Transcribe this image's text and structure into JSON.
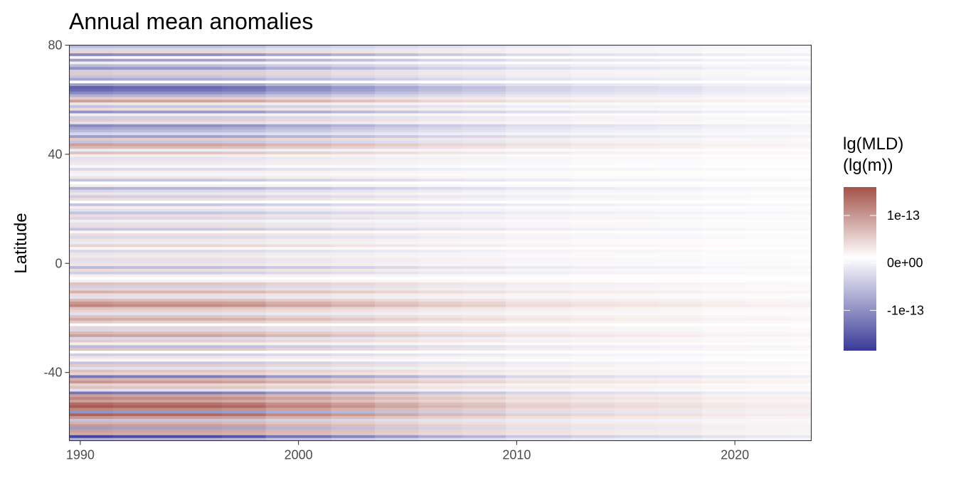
{
  "chart_data": {
    "type": "heatmap",
    "title": "Annual mean anomalies",
    "xlabel": "",
    "ylabel": "Latitude",
    "x_ticks": [
      "1990",
      "2000",
      "2010",
      "2020"
    ],
    "x_tick_values": [
      1990,
      2000,
      2010,
      2020
    ],
    "y_ticks": [
      "80",
      "40",
      "0",
      "-40"
    ],
    "y_tick_values": [
      80,
      40,
      0,
      -40
    ],
    "xlim": [
      1989.5,
      2023.5
    ],
    "ylim": [
      -65,
      80
    ],
    "grid": false,
    "legend": {
      "title_line1": "lg(MLD)",
      "title_line2": "(lg(m))",
      "placement": "right",
      "ticks": [
        "1e-13",
        "0e+00",
        "-1e-13"
      ],
      "tick_values": [
        1e-13,
        0,
        -1e-13
      ],
      "range": [
        -1.85e-13,
        1.6e-13
      ],
      "colors": {
        "low": "#3a3a98",
        "mid": "#ffffff",
        "high": "#a3524a"
      }
    },
    "period_starts": [
      1989.5,
      1991.5,
      1996.5,
      1998.5,
      2001.5,
      2003.5,
      2005.5,
      2007.5,
      2009.5,
      2012.5,
      2014.5,
      2016.5,
      2018.5,
      2020.5,
      2022.5
    ],
    "period_factors": [
      1.0,
      0.95,
      0.9,
      0.75,
      0.65,
      0.55,
      0.45,
      0.4,
      0.3,
      0.25,
      0.22,
      0.2,
      0.15,
      0.13,
      0.12
    ],
    "bands": [
      [
        80,
        79,
        -0.35
      ],
      [
        79,
        78,
        -0.2
      ],
      [
        78,
        77,
        0.25
      ],
      [
        77,
        76,
        -0.6
      ],
      [
        76,
        75,
        0.05
      ],
      [
        75,
        74,
        -0.5
      ],
      [
        74,
        73,
        0.1
      ],
      [
        73,
        72,
        -0.35
      ],
      [
        72,
        71,
        -0.55
      ],
      [
        71,
        70,
        -0.25
      ],
      [
        70,
        69,
        0.3
      ],
      [
        69,
        68,
        -0.3
      ],
      [
        68,
        67,
        -0.45
      ],
      [
        67,
        66,
        0.0
      ],
      [
        66,
        65,
        -0.5
      ],
      [
        65,
        64,
        -0.8
      ],
      [
        64,
        63,
        -0.75
      ],
      [
        63,
        62,
        -0.6
      ],
      [
        62,
        61,
        -0.4
      ],
      [
        61,
        60,
        0.3
      ],
      [
        60,
        59,
        0.55
      ],
      [
        59,
        58,
        0.15
      ],
      [
        58,
        57,
        -0.3
      ],
      [
        57,
        56,
        0.2
      ],
      [
        56,
        55,
        -0.55
      ],
      [
        55,
        54,
        0.1
      ],
      [
        54,
        53,
        -0.25
      ],
      [
        53,
        52,
        0.3
      ],
      [
        52,
        51,
        -0.15
      ],
      [
        51,
        50,
        -0.6
      ],
      [
        50,
        49,
        -0.45
      ],
      [
        49,
        48,
        -0.35
      ],
      [
        48,
        47,
        -0.2
      ],
      [
        47,
        46,
        -0.5
      ],
      [
        46,
        45,
        0.3
      ],
      [
        45,
        44,
        -0.3
      ],
      [
        44,
        43,
        0.55
      ],
      [
        43,
        42,
        0.4
      ],
      [
        42,
        41,
        -0.1
      ],
      [
        41,
        40,
        0.35
      ],
      [
        40,
        39,
        0.1
      ],
      [
        39,
        38,
        -0.15
      ],
      [
        38,
        37,
        0.15
      ],
      [
        37,
        36,
        -0.1
      ],
      [
        36,
        35,
        0.05
      ],
      [
        35,
        34,
        -0.2
      ],
      [
        34,
        33,
        0.1
      ],
      [
        33,
        32,
        -0.05
      ],
      [
        32,
        31,
        0.15
      ],
      [
        31,
        30,
        -0.3
      ],
      [
        30,
        29,
        0.0
      ],
      [
        29,
        28,
        0.1
      ],
      [
        28,
        27,
        -0.4
      ],
      [
        27,
        26,
        -0.2
      ],
      [
        26,
        25,
        0.15
      ],
      [
        25,
        24,
        -0.25
      ],
      [
        24,
        23,
        0.2
      ],
      [
        23,
        22,
        0.0
      ],
      [
        22,
        21,
        -0.3
      ],
      [
        21,
        20,
        0.1
      ],
      [
        20,
        19,
        -0.15
      ],
      [
        19,
        18,
        -0.3
      ],
      [
        18,
        17,
        0.2
      ],
      [
        17,
        16,
        -0.2
      ],
      [
        16,
        15,
        0.1
      ],
      [
        15,
        14,
        -0.15
      ],
      [
        14,
        13,
        0.2
      ],
      [
        13,
        12,
        -0.3
      ],
      [
        12,
        11,
        0.05
      ],
      [
        11,
        10,
        0.2
      ],
      [
        10,
        9,
        -0.2
      ],
      [
        9,
        8,
        0.15
      ],
      [
        8,
        7,
        -0.1
      ],
      [
        7,
        6,
        0.25
      ],
      [
        6,
        5,
        0.05
      ],
      [
        5,
        4,
        -0.2
      ],
      [
        4,
        3,
        0.15
      ],
      [
        3,
        2,
        -0.1
      ],
      [
        2,
        1,
        0.2
      ],
      [
        1,
        0,
        -0.15
      ],
      [
        0,
        -1,
        0.15
      ],
      [
        -1,
        -2,
        -0.35
      ],
      [
        -2,
        -3,
        0.2
      ],
      [
        -3,
        -4,
        -0.25
      ],
      [
        -4,
        -5,
        0.1
      ],
      [
        -5,
        -6,
        0.0
      ],
      [
        -6,
        -7,
        0.1
      ],
      [
        -7,
        -8,
        0.35
      ],
      [
        -8,
        -9,
        -0.25
      ],
      [
        -9,
        -10,
        0.25
      ],
      [
        -10,
        -11,
        0.45
      ],
      [
        -11,
        -12,
        0.2
      ],
      [
        -12,
        -13,
        -0.15
      ],
      [
        -13,
        -14,
        0.4
      ],
      [
        -14,
        -15,
        0.6
      ],
      [
        -15,
        -16,
        0.7
      ],
      [
        -16,
        -17,
        0.35
      ],
      [
        -17,
        -18,
        0.25
      ],
      [
        -18,
        -19,
        -0.15
      ],
      [
        -19,
        -20,
        0.35
      ],
      [
        -20,
        -21,
        0.5
      ],
      [
        -21,
        -22,
        0.3
      ],
      [
        -22,
        -23,
        0.0
      ],
      [
        -23,
        -24,
        0.25
      ],
      [
        -24,
        -25,
        -0.2
      ],
      [
        -25,
        -26,
        0.4
      ],
      [
        -26,
        -27,
        0.55
      ],
      [
        -27,
        -28,
        -0.2
      ],
      [
        -28,
        -29,
        0.3
      ],
      [
        -29,
        -30,
        0.1
      ],
      [
        -30,
        -31,
        -0.35
      ],
      [
        -31,
        -32,
        0.35
      ],
      [
        -32,
        -33,
        0.0
      ],
      [
        -33,
        -34,
        -0.25
      ],
      [
        -34,
        -35,
        0.15
      ],
      [
        -35,
        -36,
        0.05
      ],
      [
        -36,
        -37,
        -0.3
      ],
      [
        -37,
        -38,
        0.3
      ],
      [
        -38,
        -39,
        -0.15
      ],
      [
        -39,
        -40,
        0.35
      ],
      [
        -40,
        -41,
        0.25
      ],
      [
        -41,
        -42,
        -0.7
      ],
      [
        -42,
        -43,
        0.45
      ],
      [
        -43,
        -44,
        0.6
      ],
      [
        -44,
        -45,
        0.25
      ],
      [
        -45,
        -46,
        0.35
      ],
      [
        -46,
        -47,
        -0.15
      ],
      [
        -47,
        -48,
        -0.7
      ],
      [
        -48,
        -49,
        0.55
      ],
      [
        -49,
        -50,
        0.7
      ],
      [
        -50,
        -51,
        0.55
      ],
      [
        -51,
        -52,
        0.85
      ],
      [
        -52,
        -53,
        0.95
      ],
      [
        -53,
        -54,
        0.7
      ],
      [
        -54,
        -55,
        -0.55
      ],
      [
        -55,
        -56,
        0.9
      ],
      [
        -56,
        -57,
        0.6
      ],
      [
        -57,
        -58,
        -0.3
      ],
      [
        -58,
        -59,
        0.45
      ],
      [
        -59,
        -60,
        0.6
      ],
      [
        -60,
        -61,
        -0.5
      ],
      [
        -61,
        -62,
        0.55
      ],
      [
        -62,
        -63,
        0.5
      ],
      [
        -63,
        -64,
        -0.95
      ],
      [
        -64,
        -65,
        -0.4
      ]
    ]
  }
}
